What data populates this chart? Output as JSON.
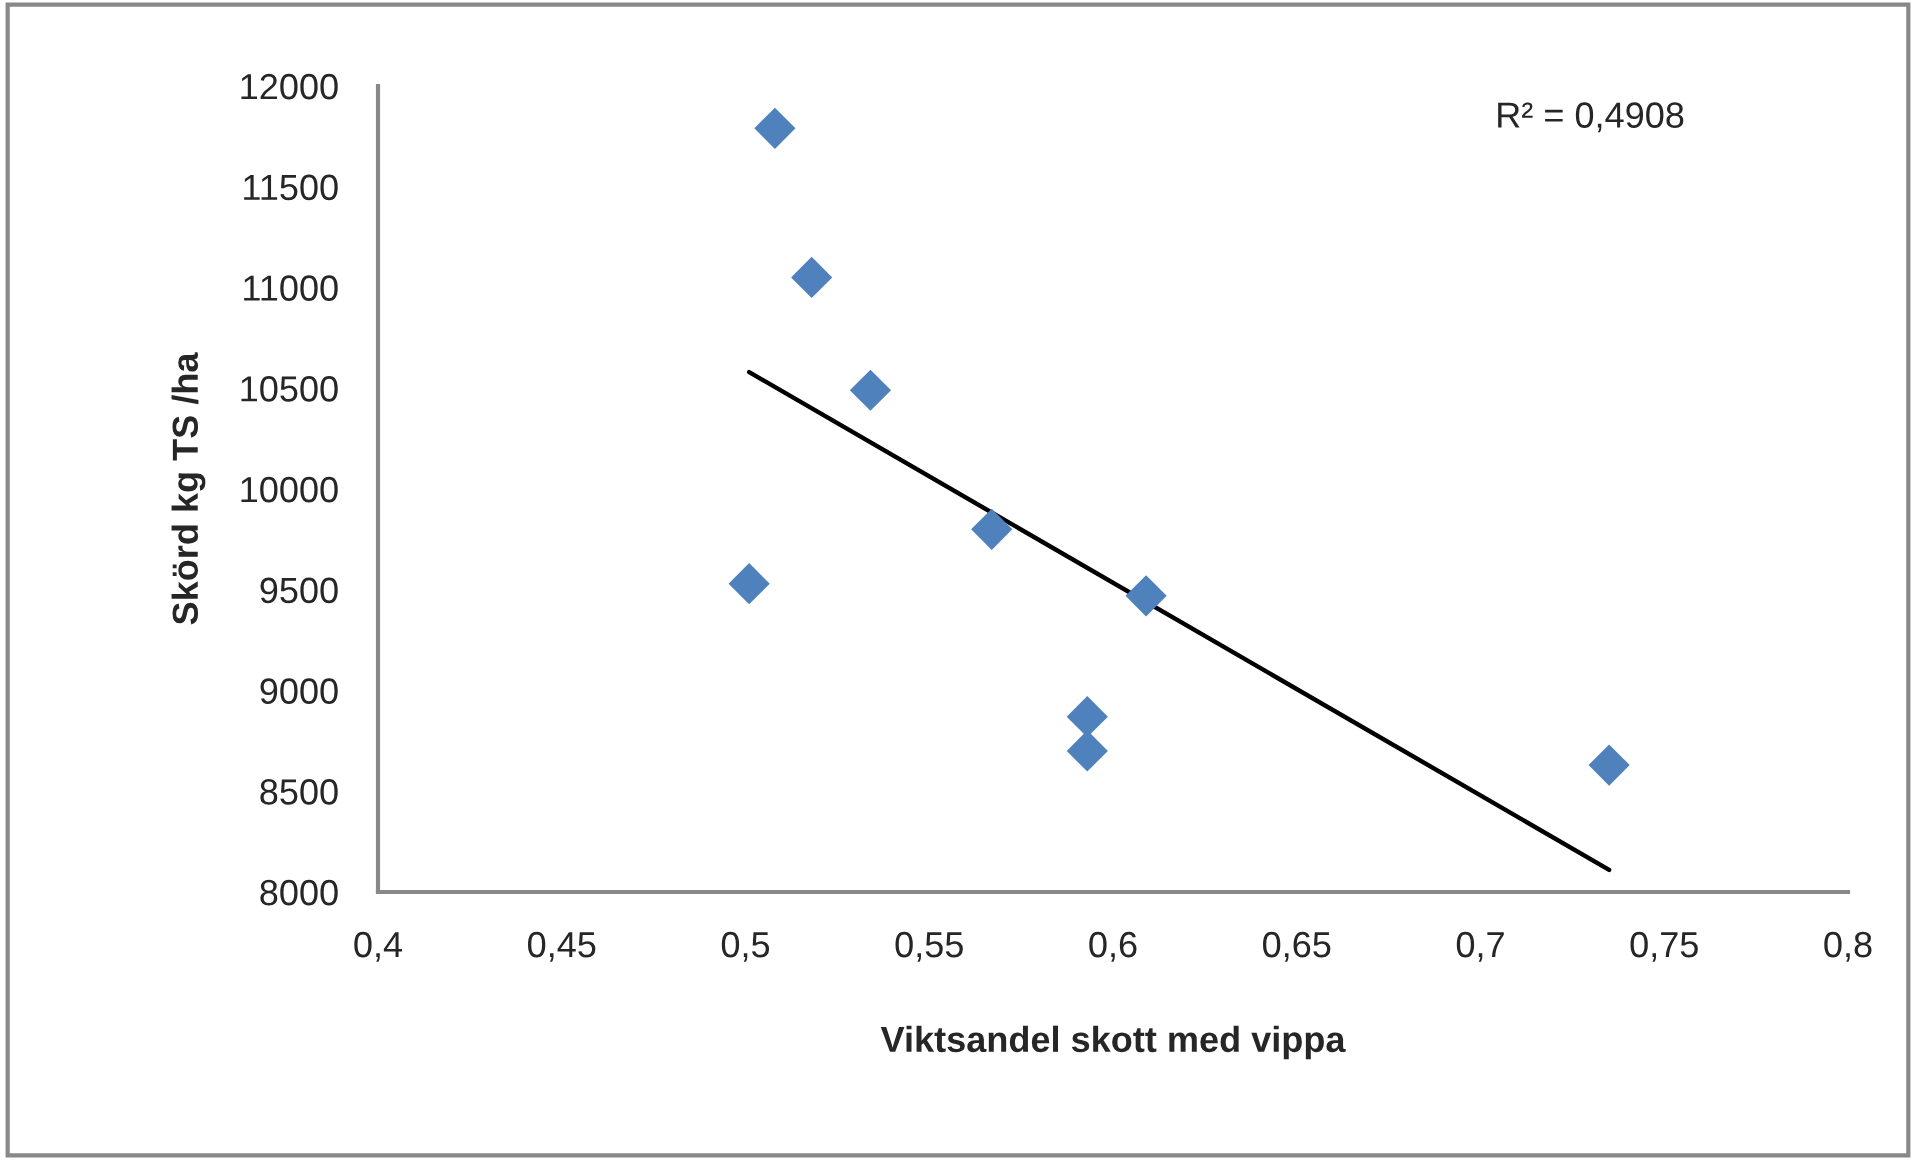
{
  "chart_data": {
    "type": "scatter",
    "xlabel": "Viktsandel skott med vippa",
    "ylabel": "Skörd kg TS /ha",
    "annotations": [
      "R² = 0,4908"
    ],
    "series": [
      {
        "color": "#4f81bd",
        "marker": "diamond",
        "x": [
          0.508,
          0.518,
          0.534,
          0.567,
          0.501,
          0.609,
          0.593,
          0.593,
          0.735
        ],
        "values": [
          11790,
          11050,
          10490,
          9800,
          9530,
          9470,
          8870,
          8700,
          8630
        ]
      },
      {
        "type": "line",
        "color": "#000000",
        "marker": "none",
        "line_style": "solid",
        "x": [
          0.501,
          0.735
        ],
        "values": [
          10580,
          8110
        ]
      }
    ],
    "xlim": [
      0.4,
      0.8
    ],
    "xticks": [
      {
        "value": 0.4,
        "label": "0,4"
      },
      {
        "value": 0.45,
        "label": "0,45"
      },
      {
        "value": 0.5,
        "label": "0,5"
      },
      {
        "value": 0.55,
        "label": "0,55"
      },
      {
        "value": 0.6,
        "label": "0,6"
      },
      {
        "value": 0.65,
        "label": "0,65"
      },
      {
        "value": 0.7,
        "label": "0,7"
      },
      {
        "value": 0.75,
        "label": "0,75"
      },
      {
        "value": 0.8,
        "label": "0,8"
      }
    ],
    "ylim": [
      8000,
      12000
    ],
    "yticks": [
      8000,
      8500,
      9000,
      9500,
      10000,
      10500,
      11000,
      11500,
      12000
    ],
    "grid": false,
    "legend": false
  }
}
